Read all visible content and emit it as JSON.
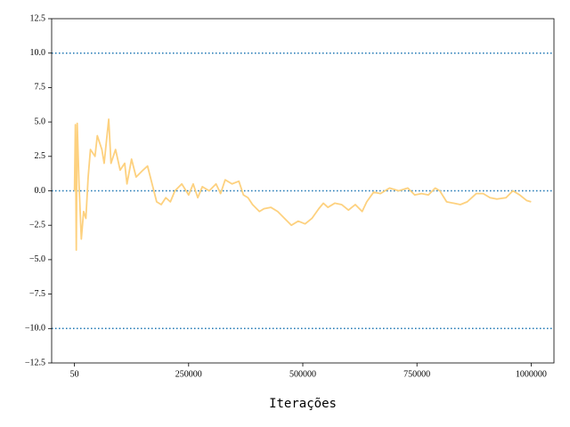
{
  "chart_data": {
    "type": "line",
    "xlabel": "Iterações",
    "x": [
      50,
      2000,
      4000,
      6000,
      10000,
      15000,
      20000,
      25000,
      30000,
      35000,
      45000,
      50000,
      60000,
      65000,
      75000,
      80000,
      90000,
      100000,
      110000,
      115000,
      125000,
      135000,
      150000,
      160000,
      170000,
      180000,
      190000,
      200000,
      210000,
      220000,
      235000,
      250000,
      260000,
      270000,
      280000,
      295000,
      310000,
      320000,
      330000,
      345000,
      360000,
      370000,
      380000,
      390000,
      405000,
      415000,
      430000,
      445000,
      460000,
      475000,
      490000,
      505000,
      520000,
      535000,
      545000,
      555000,
      570000,
      585000,
      600000,
      615000,
      630000,
      640000,
      655000,
      670000,
      690000,
      710000,
      730000,
      745000,
      760000,
      775000,
      790000,
      800000,
      815000,
      830000,
      845000,
      860000,
      880000,
      895000,
      910000,
      925000,
      945000,
      960000,
      975000,
      990000,
      1000000
    ],
    "series": [
      {
        "color": "#fdd17f",
        "values": [
          0,
          4.8,
          -4.3,
          4.9,
          0.5,
          -3.5,
          -1.5,
          -2,
          1,
          3,
          2.5,
          4,
          3,
          2,
          5.2,
          2,
          3,
          1.5,
          2,
          0.5,
          2.3,
          1,
          1.5,
          1.8,
          0.5,
          -0.8,
          -1,
          -0.5,
          -0.8,
          0,
          0.5,
          -0.3,
          0.5,
          -0.5,
          0.3,
          0,
          0.5,
          -0.2,
          0.8,
          0.5,
          0.7,
          -0.3,
          -0.5,
          -1,
          -1.5,
          -1.3,
          -1.2,
          -1.5,
          -2,
          -2.5,
          -2.2,
          -2.4,
          -2,
          -1.3,
          -0.9,
          -1.2,
          -0.9,
          -1,
          -1.4,
          -1,
          -1.5,
          -0.8,
          -0.1,
          -0.2,
          0.2,
          0,
          0.2,
          -0.3,
          -0.2,
          -0.3,
          0.2,
          0,
          -0.8,
          -0.9,
          -1.0,
          -0.8,
          -0.2,
          -0.2,
          -0.5,
          -0.6,
          -0.5,
          0,
          -0.3,
          -0.7,
          -0.8
        ]
      }
    ],
    "hlines": [
      10,
      0,
      -10
    ],
    "hline_color": "#1f77b4",
    "xlim": [
      -49947.5,
      1049997.5
    ],
    "ylim": [
      -12.5,
      12.5
    ],
    "xticks": [
      50,
      250000,
      500000,
      750000,
      1000000
    ],
    "yticks": [
      {
        "value": -12.5,
        "label": "−12.5"
      },
      {
        "value": -10,
        "label": "−10.0"
      },
      {
        "value": -7.5,
        "label": "−7.5"
      },
      {
        "value": -5,
        "label": "−5.0"
      },
      {
        "value": -2.5,
        "label": "−2.5"
      },
      {
        "value": 0,
        "label": "0.0"
      },
      2.5,
      {
        "value": 5,
        "label": "5.0"
      },
      7.5,
      {
        "value": 10,
        "label": "10.0"
      },
      12.5
    ]
  }
}
